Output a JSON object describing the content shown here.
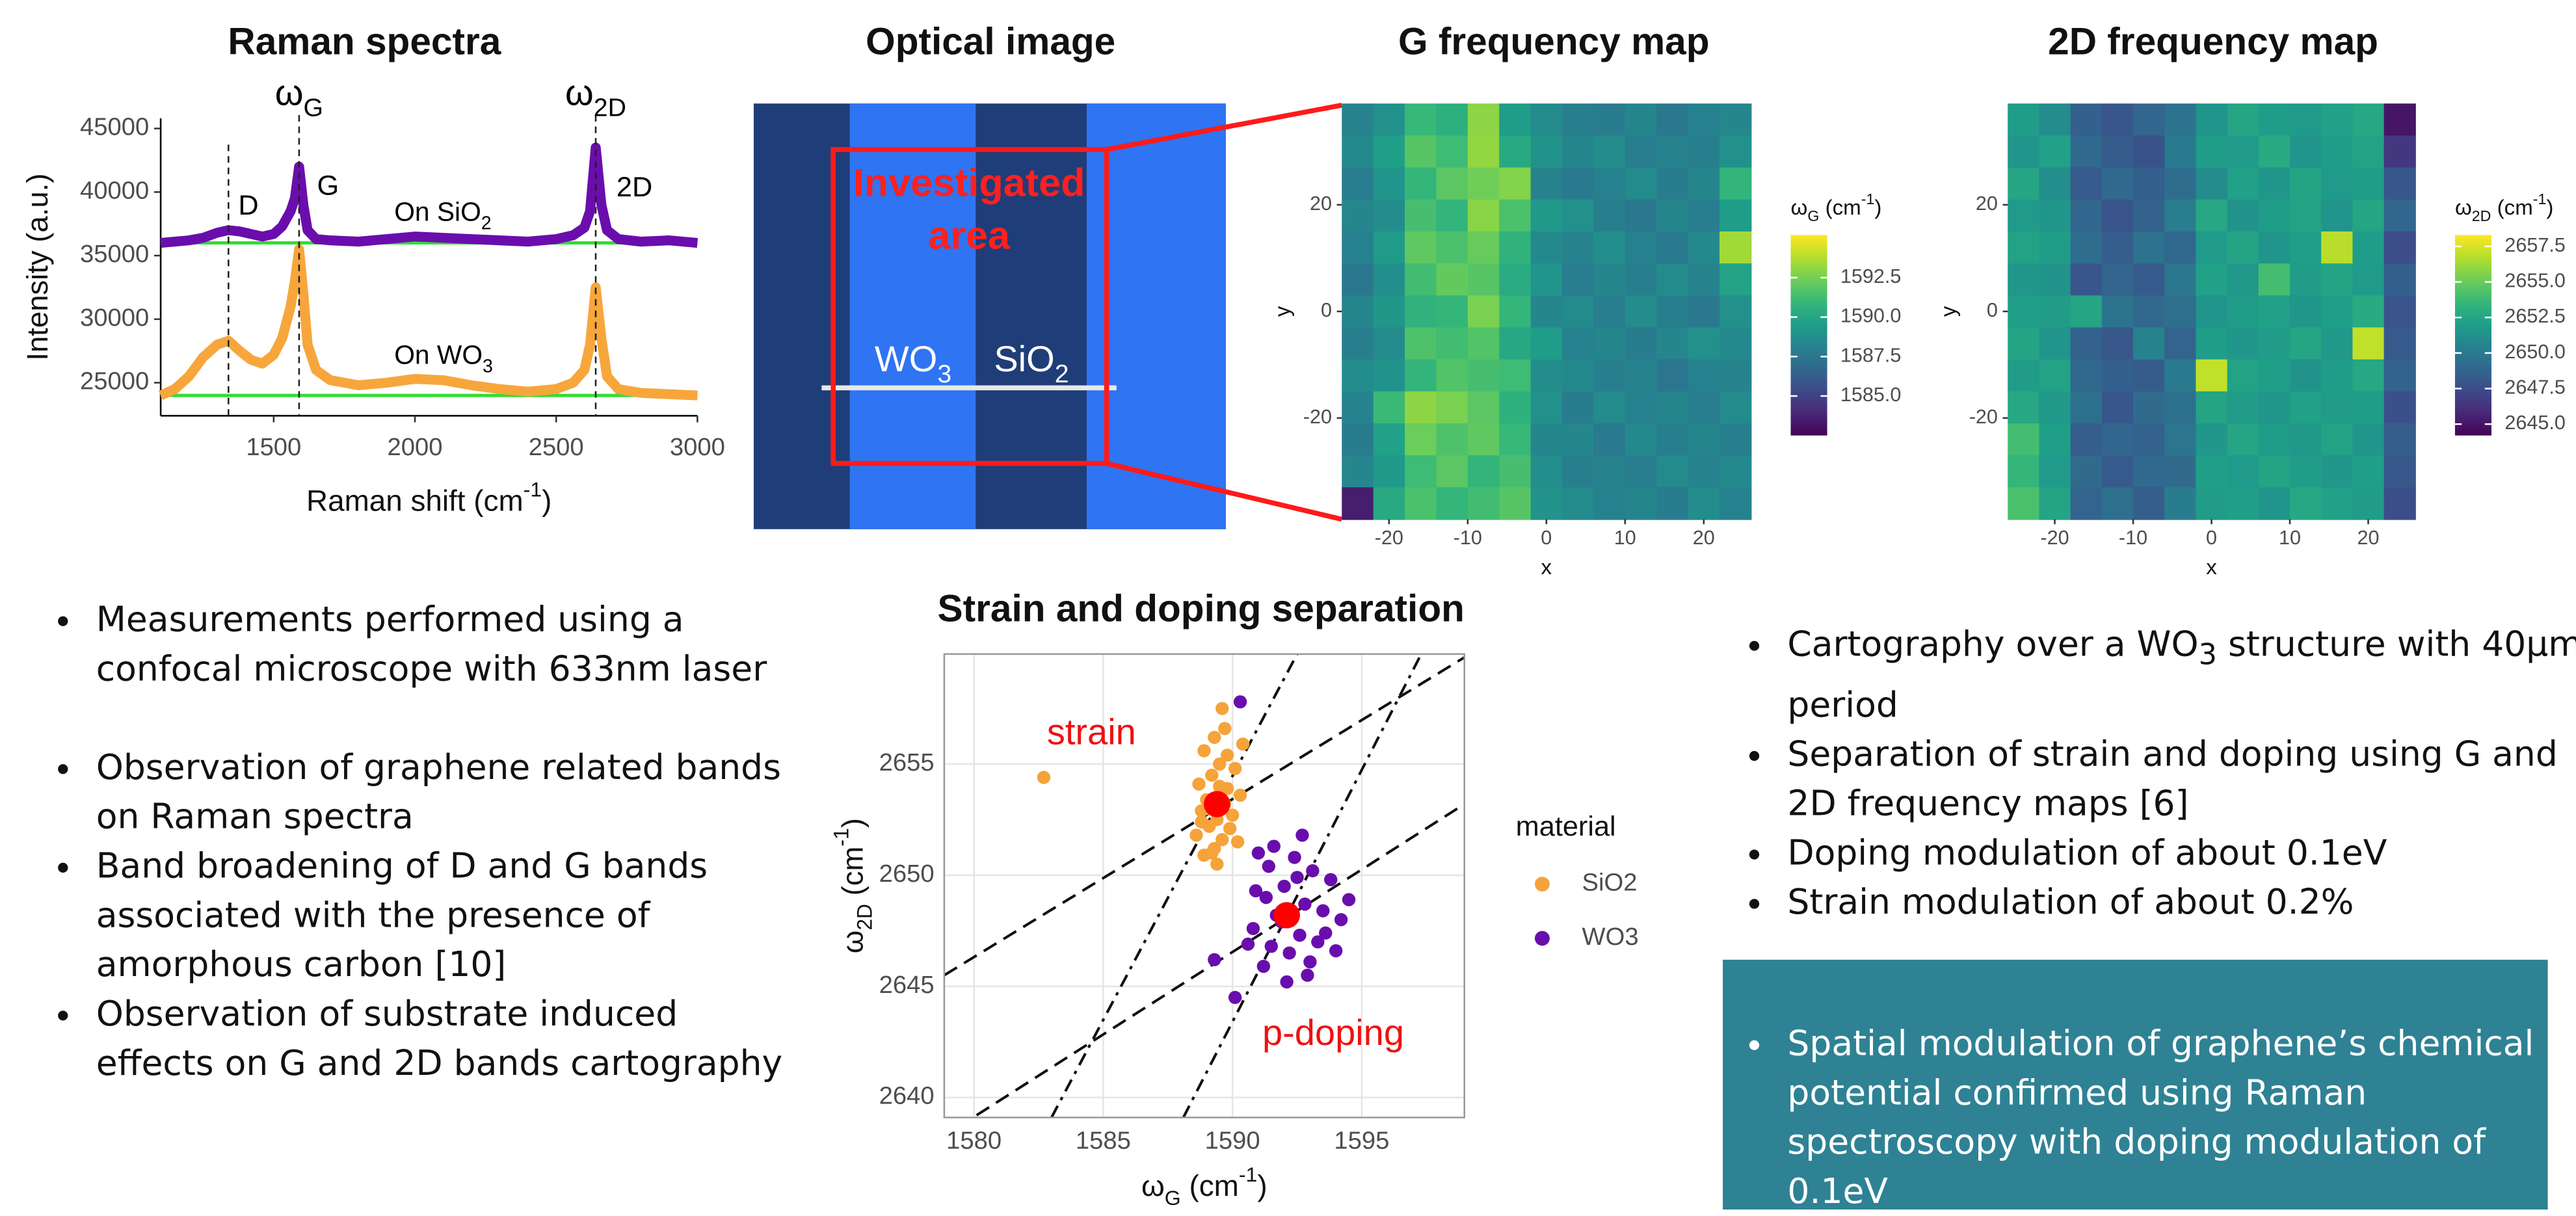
{
  "chart_data": [
    {
      "type": "line",
      "title": "Raman spectra",
      "x_label": [
        {
          "text": "Raman shift (cm"
        },
        {
          "sup": "-1"
        },
        {
          "text": ")"
        }
      ],
      "y_label": "Intensity (a.u.)",
      "xlim": [
        1100,
        3000
      ],
      "ylim": [
        22400,
        45800
      ],
      "xticks": [
        1500,
        2000,
        2500,
        3000
      ],
      "yticks": [
        25000,
        30000,
        35000,
        40000,
        45000
      ],
      "x": [
        1100,
        1150,
        1200,
        1250,
        1300,
        1340,
        1380,
        1420,
        1460,
        1500,
        1530,
        1560,
        1575,
        1590,
        1605,
        1620,
        1650,
        1700,
        1800,
        1900,
        2000,
        2100,
        2200,
        2300,
        2400,
        2500,
        2560,
        2600,
        2620,
        2640,
        2660,
        2680,
        2720,
        2800,
        2900,
        3000
      ],
      "series": [
        {
          "name": [
            {
              "text": "On SiO"
            },
            {
              "sub": "2"
            }
          ],
          "color": "#6a0dad",
          "values": [
            36000,
            36100,
            36200,
            36400,
            36800,
            37000,
            36900,
            36700,
            36500,
            36700,
            37300,
            38500,
            39500,
            42000,
            39000,
            37000,
            36300,
            36200,
            36100,
            36300,
            36500,
            36400,
            36300,
            36200,
            36100,
            36300,
            36600,
            37200,
            38500,
            43500,
            39000,
            37000,
            36300,
            36100,
            36200,
            36000
          ]
        },
        {
          "name": [
            {
              "text": "On WO"
            },
            {
              "sub": "3"
            }
          ],
          "color": "#f7a63c",
          "values": [
            24000,
            24500,
            25500,
            27000,
            28000,
            28300,
            27500,
            26800,
            26500,
            27200,
            28500,
            31000,
            33000,
            35500,
            32000,
            28000,
            26000,
            25200,
            24800,
            25000,
            25300,
            25200,
            24800,
            24500,
            24300,
            24500,
            25000,
            26000,
            28000,
            32500,
            28500,
            25500,
            24500,
            24200,
            24100,
            24000
          ]
        }
      ],
      "hlines": {
        "values": [
          36000,
          24000
        ],
        "color": "#33dd33"
      },
      "vlines": [
        1340,
        1590,
        2640
      ],
      "annotations": [
        [
          {
            "text": "ω"
          },
          {
            "sub": "G"
          }
        ],
        [
          {
            "text": "ω"
          },
          {
            "sub": "2D"
          }
        ],
        "D",
        "G",
        "2D"
      ]
    },
    {
      "type": "heatmap",
      "title": "G frequency map",
      "x_label": "x",
      "y_label": "y",
      "xlim": [
        -26,
        26
      ],
      "ylim": [
        -39,
        39
      ],
      "xticks": [
        -20,
        -10,
        0,
        10,
        20
      ],
      "yticks": [
        -20,
        0,
        20
      ],
      "x": [
        -24,
        -20,
        -16,
        -12,
        -8,
        -4,
        0,
        4,
        8,
        12,
        16,
        20,
        24
      ],
      "y": [
        36,
        30,
        24,
        18,
        12,
        6,
        0,
        -6,
        -12,
        -18,
        -24,
        -30,
        -36
      ],
      "z": [
        [
          1588.2,
          1588.9,
          1591.0,
          1590.5,
          1593.0,
          1589.5,
          1588.6,
          1588.0,
          1587.8,
          1588.3,
          1587.6,
          1588.1,
          1588.4
        ],
        [
          1588.5,
          1589.6,
          1591.8,
          1591.2,
          1593.1,
          1590.2,
          1589.0,
          1588.3,
          1588.7,
          1587.9,
          1588.2,
          1588.0,
          1588.9
        ],
        [
          1587.9,
          1589.1,
          1590.9,
          1591.9,
          1592.4,
          1592.8,
          1588.2,
          1587.7,
          1588.1,
          1588.6,
          1587.8,
          1588.4,
          1590.8
        ],
        [
          1588.4,
          1588.7,
          1591.4,
          1590.8,
          1592.9,
          1591.5,
          1589.3,
          1588.9,
          1588.0,
          1587.6,
          1588.3,
          1587.9,
          1589.5
        ],
        [
          1588.1,
          1589.4,
          1592.0,
          1591.5,
          1592.2,
          1590.7,
          1588.5,
          1588.2,
          1588.8,
          1588.1,
          1587.7,
          1588.5,
          1593.4
        ],
        [
          1587.6,
          1588.8,
          1591.3,
          1592.1,
          1591.8,
          1590.3,
          1589.1,
          1587.9,
          1588.4,
          1588.0,
          1588.6,
          1588.2,
          1589.8
        ],
        [
          1588.3,
          1589.2,
          1590.7,
          1590.9,
          1592.6,
          1590.9,
          1588.4,
          1588.6,
          1587.9,
          1588.7,
          1588.0,
          1587.6,
          1588.9
        ],
        [
          1588.0,
          1588.6,
          1591.6,
          1591.3,
          1591.7,
          1590.1,
          1589.5,
          1588.1,
          1588.3,
          1587.8,
          1588.4,
          1588.9,
          1588.5
        ],
        [
          1588.7,
          1589.0,
          1590.8,
          1591.7,
          1591.4,
          1591.2,
          1588.7,
          1588.5,
          1588.0,
          1588.2,
          1587.5,
          1588.1,
          1588.2
        ],
        [
          1588.2,
          1591.1,
          1593.0,
          1592.6,
          1591.9,
          1590.6,
          1588.9,
          1587.8,
          1588.6,
          1588.1,
          1588.3,
          1587.9,
          1588.6
        ],
        [
          1587.8,
          1589.7,
          1592.3,
          1591.6,
          1592.0,
          1591.0,
          1588.3,
          1588.4,
          1587.7,
          1588.5,
          1588.0,
          1588.3,
          1588.0
        ],
        [
          1588.4,
          1589.3,
          1591.2,
          1591.9,
          1590.8,
          1591.4,
          1588.8,
          1588.0,
          1588.2,
          1587.9,
          1588.6,
          1588.2,
          1588.5
        ],
        [
          1583.5,
          1590.2,
          1591.5,
          1590.9,
          1591.3,
          1591.8,
          1589.0,
          1588.6,
          1588.1,
          1588.3,
          1587.8,
          1588.7,
          1588.1
        ]
      ],
      "colorbar": {
        "title": [
          {
            "text": "ω"
          },
          {
            "sub": "G"
          },
          {
            "text": " (cm"
          },
          {
            "sup": "-1"
          },
          {
            "text": ")"
          }
        ],
        "lim": [
          1582.5,
          1595.2
        ],
        "ticks": [
          {
            "value": 1585,
            "label": "1585.0"
          },
          1587.5,
          {
            "value": 1590,
            "label": "1590.0"
          },
          1592.5
        ]
      }
    },
    {
      "type": "heatmap",
      "title": "2D frequency map",
      "x_label": "x",
      "y_label": "y",
      "xlim": [
        -26,
        26
      ],
      "ylim": [
        -39,
        39
      ],
      "xticks": [
        -20,
        -10,
        0,
        10,
        20
      ],
      "yticks": [
        -20,
        0,
        20
      ],
      "x": [
        -24,
        -20,
        -16,
        -12,
        -8,
        -4,
        0,
        4,
        8,
        12,
        16,
        20,
        24
      ],
      "y": [
        36,
        30,
        24,
        18,
        12,
        6,
        0,
        -6,
        -12,
        -18,
        -24,
        -30,
        -36
      ],
      "z": [
        [
          2652.0,
          2651.0,
          2648.5,
          2648.0,
          2648.8,
          2649.5,
          2651.5,
          2652.5,
          2652.0,
          2651.8,
          2652.2,
          2652.6,
          2645.0
        ],
        [
          2651.5,
          2652.2,
          2649.0,
          2648.3,
          2647.8,
          2650.0,
          2652.0,
          2651.8,
          2652.8,
          2651.5,
          2652.0,
          2652.3,
          2646.5
        ],
        [
          2652.5,
          2651.2,
          2648.2,
          2649.0,
          2648.5,
          2649.2,
          2651.0,
          2652.2,
          2651.6,
          2652.4,
          2651.8,
          2652.0,
          2648.0
        ],
        [
          2651.8,
          2651.6,
          2648.8,
          2647.9,
          2648.6,
          2650.2,
          2652.6,
          2651.4,
          2652.0,
          2652.3,
          2651.5,
          2652.5,
          2648.8
        ],
        [
          2652.3,
          2652.0,
          2649.2,
          2648.4,
          2649.5,
          2648.9,
          2651.8,
          2652.4,
          2651.5,
          2652.1,
          2656.8,
          2652.0,
          2647.5
        ],
        [
          2651.6,
          2651.4,
          2648.0,
          2648.7,
          2648.2,
          2649.8,
          2652.2,
          2651.7,
          2654.0,
          2651.9,
          2652.4,
          2651.8,
          2648.5
        ],
        [
          2652.1,
          2651.9,
          2652.5,
          2649.6,
          2648.9,
          2649.3,
          2651.5,
          2652.0,
          2652.2,
          2651.6,
          2652.1,
          2652.8,
          2647.9
        ],
        [
          2652.4,
          2651.5,
          2648.6,
          2648.1,
          2650.5,
          2648.7,
          2652.0,
          2651.6,
          2651.9,
          2652.5,
          2651.7,
          2657.0,
          2648.2
        ],
        [
          2651.9,
          2652.3,
          2648.9,
          2648.5,
          2648.3,
          2650.0,
          2657.0,
          2652.3,
          2652.1,
          2651.4,
          2652.0,
          2652.6,
          2648.6
        ],
        [
          2652.6,
          2651.7,
          2649.4,
          2648.0,
          2649.1,
          2649.4,
          2652.4,
          2651.9,
          2651.6,
          2652.2,
          2651.9,
          2652.0,
          2647.7
        ],
        [
          2654.0,
          2652.1,
          2648.4,
          2648.8,
          2648.6,
          2649.7,
          2651.6,
          2652.5,
          2652.0,
          2651.7,
          2652.3,
          2651.5,
          2648.4
        ],
        [
          2653.5,
          2651.8,
          2649.1,
          2648.2,
          2649.0,
          2649.1,
          2652.1,
          2651.8,
          2652.4,
          2652.0,
          2651.6,
          2652.1,
          2648.1
        ],
        [
          2654.2,
          2652.4,
          2648.7,
          2649.3,
          2648.4,
          2650.1,
          2651.9,
          2652.1,
          2651.5,
          2652.6,
          2652.2,
          2651.9,
          2647.6
        ]
      ],
      "colorbar": {
        "title": [
          {
            "text": "ω"
          },
          {
            "sub": "2D"
          },
          {
            "text": " (cm"
          },
          {
            "sup": "-1"
          },
          {
            "text": ")"
          }
        ],
        "lim": [
          2644.2,
          2658.3
        ],
        "ticks": [
          {
            "value": 2645,
            "label": "2645.0"
          },
          2647.5,
          {
            "value": 2650,
            "label": "2650.0"
          },
          2652.5,
          {
            "value": 2655,
            "label": "2655.0"
          },
          2657.5
        ]
      }
    },
    {
      "type": "scatter",
      "title": "Strain and doping separation",
      "x_label": [
        {
          "text": "ω"
        },
        {
          "sub": "G"
        },
        {
          "text": " (cm"
        },
        {
          "sup": "-1"
        },
        {
          "text": ")"
        }
      ],
      "y_label": [
        {
          "text": "ω"
        },
        {
          "sub": "2D"
        },
        {
          "text": " (cm"
        },
        {
          "sup": "-1"
        },
        {
          "text": ")"
        }
      ],
      "xlim": [
        1578.85,
        1598.97
      ],
      "ylim": [
        2639.1,
        2659.95
      ],
      "xticks": [
        1580,
        1585,
        1590,
        1595
      ],
      "yticks": [
        2640,
        2645,
        2650,
        2655
      ],
      "grid": true,
      "legend_title": "material",
      "series": [
        {
          "name": "SiO2",
          "color": "#f5a33a",
          "x": [
            1582.7,
            1589.6,
            1589.3,
            1588.9,
            1589.8,
            1590.1,
            1589.2,
            1588.7,
            1589.5,
            1590.3,
            1589.0,
            1589.7,
            1588.8,
            1590.0,
            1589.4,
            1589.1,
            1589.9,
            1588.6,
            1589.6,
            1590.2,
            1589.3,
            1588.9,
            1589.8,
            1589.5,
            1589.0,
            1590.4,
            1589.2,
            1588.8,
            1589.7,
            1589.4
          ],
          "y": [
            2654.4,
            2657.5,
            2656.2,
            2655.6,
            2655.4,
            2654.8,
            2654.5,
            2654.1,
            2654.0,
            2653.6,
            2653.4,
            2653.2,
            2652.9,
            2652.7,
            2652.5,
            2652.2,
            2652.1,
            2651.8,
            2651.6,
            2651.5,
            2651.2,
            2650.9,
            2653.9,
            2655.0,
            2653.0,
            2655.9,
            2651.0,
            2652.4,
            2656.6,
            2650.5
          ]
        },
        {
          "name": "WO3",
          "color": "#6a0dad",
          "x": [
            1590.3,
            1589.3,
            1590.1,
            1591.0,
            1591.6,
            1592.4,
            1593.1,
            1593.8,
            1594.5,
            1592.0,
            1591.3,
            1592.8,
            1593.5,
            1594.2,
            1590.8,
            1591.9,
            1592.6,
            1593.3,
            1591.5,
            1592.2,
            1593.0,
            1590.6,
            1591.2,
            1592.9,
            1594.0,
            1591.7,
            1592.5,
            1590.9,
            1593.6,
            1592.1,
            1591.4,
            1592.7
          ],
          "y": [
            2657.8,
            2646.2,
            2644.5,
            2651.0,
            2651.3,
            2650.8,
            2650.2,
            2649.8,
            2648.9,
            2649.5,
            2649.0,
            2648.7,
            2648.4,
            2648.0,
            2647.6,
            2647.9,
            2647.3,
            2647.0,
            2646.8,
            2646.5,
            2646.1,
            2646.9,
            2645.9,
            2645.5,
            2646.6,
            2648.2,
            2649.9,
            2649.3,
            2647.4,
            2645.2,
            2650.4,
            2651.8
          ]
        }
      ],
      "means": {
        "color": "#ff0000",
        "x": [
          1589.4,
          1592.1
        ],
        "y": [
          2653.2,
          2648.2
        ]
      },
      "lines": [
        {
          "x": [
            1578.85,
            1598.97
          ],
          "y": [
            2645.5,
            2659.8
          ],
          "dash": "dashed"
        },
        {
          "x": [
            1580.1,
            1598.97
          ],
          "y": [
            2639.2,
            2653.2
          ],
          "dash": "dashed"
        },
        {
          "x": [
            1583.0,
            1592.5
          ],
          "y": [
            2639.1,
            2659.95
          ],
          "dash": "dashdot"
        },
        {
          "x": [
            1588.1,
            1597.3
          ],
          "y": [
            2639.1,
            2659.95
          ],
          "dash": "dashdot"
        }
      ],
      "annotations": [
        "strain",
        "p-doping"
      ]
    }
  ],
  "optical_image": {
    "title": "Optical image",
    "area_label": [
      "Investigated",
      "area"
    ],
    "labels": [
      [
        {
          "text": "WO"
        },
        {
          "sub": "3"
        }
      ],
      [
        {
          "text": "SiO"
        },
        {
          "sub": "2"
        }
      ]
    ]
  },
  "left_bullets": [
    "Measurements performed using a confocal microscope with 633nm laser",
    "Observation of graphene related bands on Raman spectra",
    "Band broadening of D and G bands associated with the presence of amorphous carbon [10]",
    "Observation of substrate induced effects on G and 2D bands cartography"
  ],
  "right_bullets": [
    [
      {
        "text": "Cartography over a WO"
      },
      {
        "sub": "3"
      },
      {
        "text": " structure with 40µm period"
      }
    ],
    "Separation of strain and doping using G and 2D frequency maps [6]",
    "Doping modulation of about 0.1eV",
    "Strain modulation of about 0.2%"
  ],
  "conclusion": [
    "Spatial modulation of graphene’s chemical potential confirmed using Raman spectroscopy with doping modulation of 0.1eV"
  ]
}
